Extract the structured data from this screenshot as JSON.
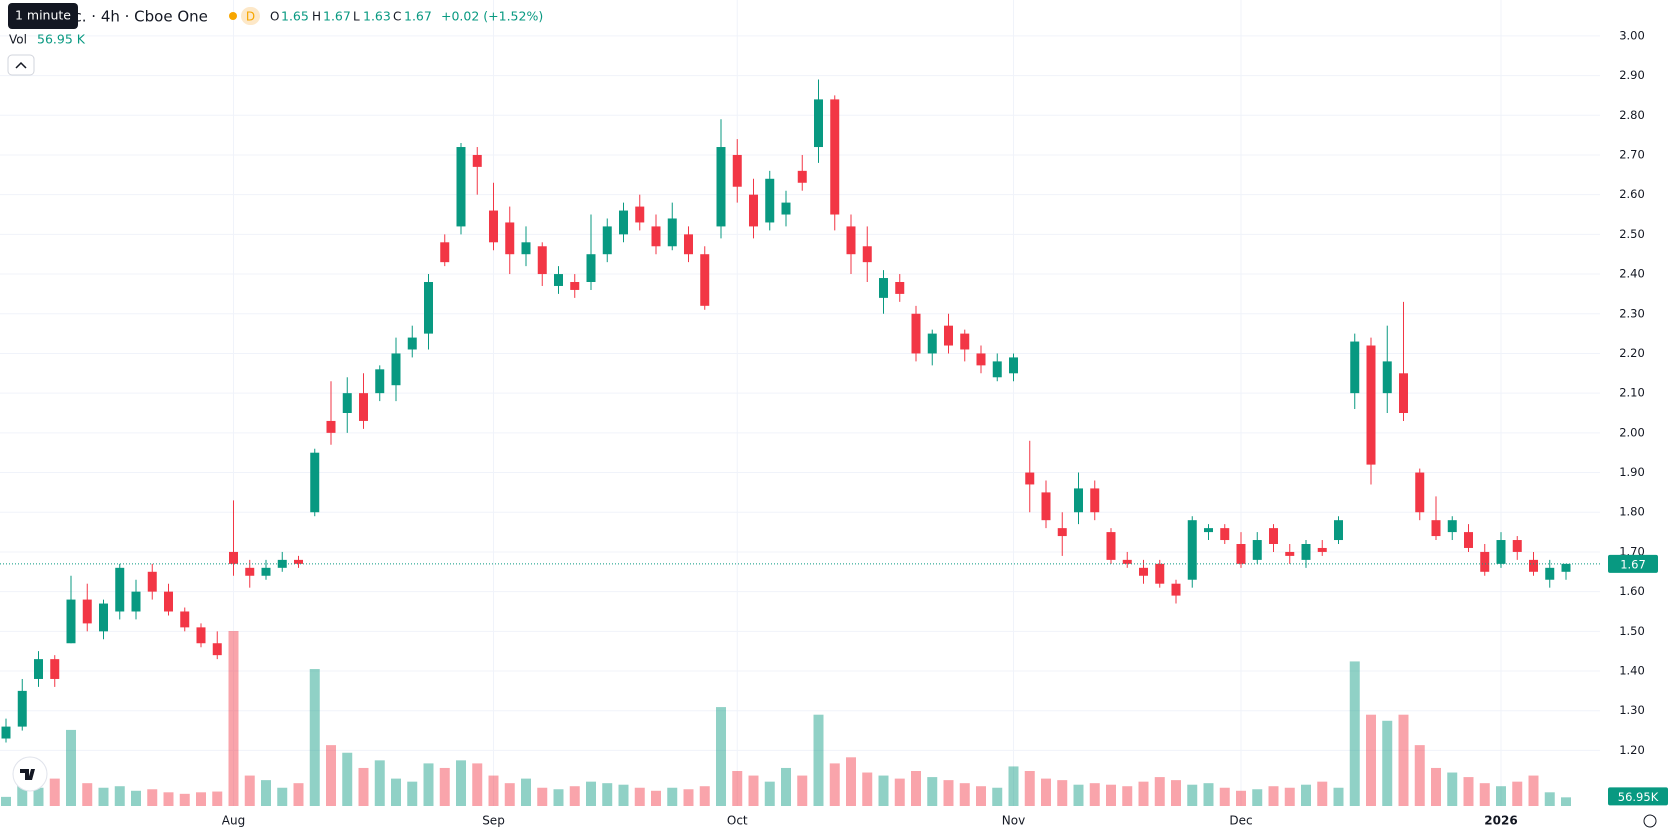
{
  "header": {
    "tooltip": "1 minute",
    "symbol": "nc. · 4h · Cboe One",
    "session": "D",
    "open_label": "O",
    "open": 1.65,
    "high_label": "H",
    "high": 1.67,
    "low_label": "L",
    "low": 1.63,
    "close_label": "C",
    "close": 1.67,
    "change": "+0.02 (+1.52%)",
    "volume_label": "Vol",
    "volume": "56.95 K"
  },
  "chart_data": {
    "type": "candlestick",
    "categories": [
      null,
      null,
      null,
      null,
      null,
      null,
      null,
      null,
      null,
      null,
      null,
      null,
      null,
      null,
      "Aug",
      null,
      null,
      null,
      null,
      null,
      null,
      null,
      null,
      null,
      null,
      null,
      null,
      null,
      null,
      null,
      "Sep",
      null,
      null,
      null,
      null,
      null,
      null,
      null,
      null,
      null,
      null,
      null,
      null,
      null,
      null,
      "Oct",
      null,
      null,
      null,
      null,
      null,
      null,
      null,
      null,
      null,
      null,
      null,
      null,
      null,
      null,
      null,
      null,
      "Nov",
      null,
      null,
      null,
      null,
      null,
      null,
      null,
      null,
      null,
      null,
      null,
      null,
      null,
      "Dec",
      null,
      null,
      null,
      null,
      null,
      null,
      null,
      null,
      null,
      null,
      null,
      null,
      null,
      null,
      null,
      "2026",
      null,
      null,
      null,
      null
    ],
    "open": [
      1.23,
      1.26,
      1.38,
      1.43,
      1.47,
      1.58,
      1.5,
      1.55,
      1.55,
      1.65,
      1.6,
      1.55,
      1.51,
      1.47,
      1.7,
      1.66,
      1.64,
      1.66,
      1.68,
      1.8,
      2.03,
      2.05,
      2.1,
      2.1,
      2.12,
      2.21,
      2.25,
      2.48,
      2.52,
      2.7,
      2.56,
      2.53,
      2.45,
      2.47,
      2.37,
      2.38,
      2.38,
      2.45,
      2.5,
      2.57,
      2.52,
      2.47,
      2.5,
      2.45,
      2.52,
      2.7,
      2.6,
      2.53,
      2.55,
      2.66,
      2.72,
      2.84,
      2.52,
      2.47,
      2.34,
      2.38,
      2.3,
      2.2,
      2.27,
      2.25,
      2.2,
      2.14,
      2.15,
      1.9,
      1.85,
      1.76,
      1.8,
      1.86,
      1.75,
      1.68,
      1.66,
      1.67,
      1.62,
      1.63,
      1.75,
      1.76,
      1.72,
      1.68,
      1.76,
      1.7,
      1.68,
      1.71,
      1.73,
      2.1,
      2.22,
      2.1,
      2.15,
      1.9,
      1.78,
      1.75,
      1.75,
      1.7,
      1.67,
      1.73,
      1.68,
      1.63,
      1.65
    ],
    "high": [
      1.28,
      1.38,
      1.45,
      1.44,
      1.64,
      1.62,
      1.58,
      1.67,
      1.63,
      1.67,
      1.62,
      1.56,
      1.52,
      1.5,
      1.83,
      1.68,
      1.68,
      1.7,
      1.69,
      1.96,
      2.13,
      2.14,
      2.15,
      2.17,
      2.24,
      2.27,
      2.4,
      2.5,
      2.73,
      2.72,
      2.63,
      2.57,
      2.52,
      2.48,
      2.42,
      2.4,
      2.55,
      2.54,
      2.58,
      2.6,
      2.55,
      2.58,
      2.52,
      2.47,
      2.79,
      2.74,
      2.64,
      2.66,
      2.61,
      2.7,
      2.89,
      2.85,
      2.55,
      2.52,
      2.41,
      2.4,
      2.32,
      2.26,
      2.3,
      2.26,
      2.22,
      2.2,
      2.2,
      1.98,
      1.88,
      1.8,
      1.9,
      1.88,
      1.76,
      1.7,
      1.68,
      1.68,
      1.63,
      1.79,
      1.77,
      1.77,
      1.75,
      1.75,
      1.77,
      1.72,
      1.73,
      1.73,
      1.79,
      2.25,
      2.24,
      2.27,
      2.33,
      1.91,
      1.84,
      1.79,
      1.77,
      1.72,
      1.75,
      1.74,
      1.7,
      1.68,
      1.67
    ],
    "low": [
      1.22,
      1.25,
      1.36,
      1.36,
      1.47,
      1.5,
      1.48,
      1.53,
      1.53,
      1.58,
      1.54,
      1.5,
      1.46,
      1.43,
      1.64,
      1.61,
      1.63,
      1.65,
      1.66,
      1.79,
      1.97,
      2.0,
      2.01,
      2.08,
      2.08,
      2.19,
      2.21,
      2.42,
      2.5,
      2.6,
      2.46,
      2.4,
      2.42,
      2.37,
      2.35,
      2.34,
      2.36,
      2.43,
      2.48,
      2.51,
      2.45,
      2.46,
      2.43,
      2.31,
      2.49,
      2.58,
      2.49,
      2.51,
      2.52,
      2.61,
      2.68,
      2.51,
      2.4,
      2.38,
      2.3,
      2.33,
      2.18,
      2.17,
      2.2,
      2.18,
      2.15,
      2.13,
      2.13,
      1.8,
      1.76,
      1.69,
      1.77,
      1.78,
      1.67,
      1.66,
      1.62,
      1.61,
      1.57,
      1.61,
      1.73,
      1.72,
      1.66,
      1.67,
      1.7,
      1.67,
      1.66,
      1.69,
      1.72,
      2.06,
      1.87,
      2.05,
      2.03,
      1.78,
      1.73,
      1.73,
      1.7,
      1.64,
      1.66,
      1.68,
      1.64,
      1.61,
      1.63
    ],
    "close": [
      1.26,
      1.35,
      1.43,
      1.38,
      1.58,
      1.52,
      1.57,
      1.66,
      1.6,
      1.6,
      1.55,
      1.51,
      1.47,
      1.44,
      1.67,
      1.64,
      1.66,
      1.68,
      1.67,
      1.95,
      2.0,
      2.1,
      2.03,
      2.16,
      2.2,
      2.24,
      2.38,
      2.43,
      2.72,
      2.67,
      2.48,
      2.45,
      2.48,
      2.4,
      2.4,
      2.36,
      2.45,
      2.52,
      2.56,
      2.53,
      2.47,
      2.54,
      2.45,
      2.32,
      2.72,
      2.62,
      2.52,
      2.64,
      2.58,
      2.63,
      2.84,
      2.55,
      2.45,
      2.43,
      2.39,
      2.35,
      2.2,
      2.25,
      2.22,
      2.21,
      2.17,
      2.18,
      2.19,
      1.87,
      1.78,
      1.74,
      1.86,
      1.8,
      1.68,
      1.67,
      1.64,
      1.62,
      1.59,
      1.78,
      1.76,
      1.73,
      1.67,
      1.73,
      1.72,
      1.69,
      1.72,
      1.7,
      1.78,
      2.23,
      1.92,
      2.18,
      2.05,
      1.8,
      1.74,
      1.78,
      1.71,
      1.65,
      1.73,
      1.7,
      1.65,
      1.66,
      1.67
    ],
    "volume": [
      60,
      150,
      120,
      180,
      500,
      150,
      120,
      130,
      100,
      110,
      90,
      80,
      90,
      95,
      1150,
      200,
      170,
      120,
      150,
      900,
      400,
      350,
      250,
      300,
      180,
      160,
      280,
      250,
      300,
      280,
      200,
      150,
      180,
      120,
      110,
      130,
      160,
      150,
      140,
      120,
      100,
      120,
      110,
      130,
      650,
      230,
      200,
      160,
      250,
      200,
      600,
      280,
      320,
      220,
      200,
      180,
      230,
      190,
      170,
      150,
      130,
      120,
      260,
      230,
      180,
      170,
      140,
      150,
      140,
      130,
      160,
      190,
      170,
      140,
      150,
      120,
      100,
      110,
      130,
      120,
      140,
      160,
      120,
      950,
      600,
      560,
      600,
      400,
      250,
      220,
      190,
      150,
      130,
      160,
      200,
      90,
      56.95
    ],
    "last_volume_label": "56.95K",
    "up_color": "#089981",
    "down_color": "#f23645",
    "ylim": [
      1.06,
      3.04
    ],
    "yticks": [
      {
        "value": 1.2,
        "label": "1.20"
      },
      {
        "value": 1.3,
        "label": "1.30"
      },
      {
        "value": 1.4,
        "label": "1.40"
      },
      {
        "value": 1.5,
        "label": "1.50"
      },
      {
        "value": 1.6,
        "label": "1.60"
      },
      {
        "value": 1.7,
        "label": "1.70"
      },
      {
        "value": 1.8,
        "label": "1.80"
      },
      {
        "value": 1.9,
        "label": "1.90"
      },
      {
        "value": 2,
        "label": "2.00"
      },
      {
        "value": 2.1,
        "label": "2.10"
      },
      {
        "value": 2.2,
        "label": "2.20"
      },
      {
        "value": 2.3,
        "label": "2.30"
      },
      {
        "value": 2.4,
        "label": "2.40"
      },
      {
        "value": 2.5,
        "label": "2.50"
      },
      {
        "value": 2.6,
        "label": "2.60"
      },
      {
        "value": 2.7,
        "label": "2.70"
      },
      {
        "value": 2.8,
        "label": "2.80"
      },
      {
        "value": 2.9,
        "label": "2.90"
      },
      {
        "value": 3,
        "label": "3.00"
      }
    ],
    "grid": true
  }
}
